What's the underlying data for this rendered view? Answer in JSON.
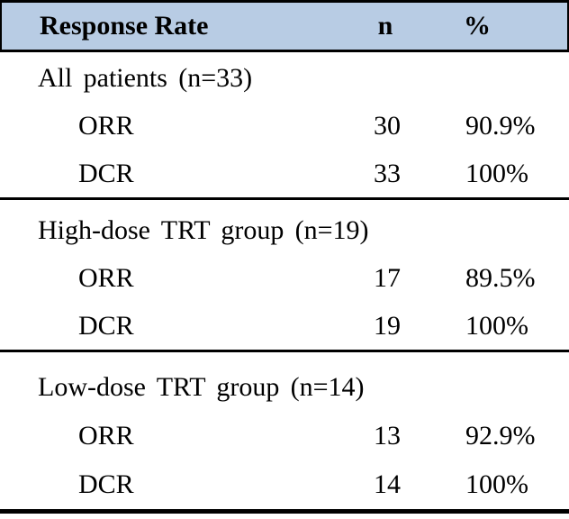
{
  "table": {
    "header": {
      "label": "Response Rate",
      "n": "n",
      "pct": "%"
    },
    "style": {
      "header_bg": "#b8cce4",
      "border_color": "#000000",
      "text_color": "#000000"
    },
    "sections": [
      {
        "group_label": "All patients (n=33)",
        "rows": [
          {
            "label": "ORR",
            "n": "30",
            "pct": "90.9%"
          },
          {
            "label": "DCR",
            "n": "33",
            "pct": "100%"
          }
        ]
      },
      {
        "group_label": "High-dose TRT group (n=19)",
        "rows": [
          {
            "label": "ORR",
            "n": "17",
            "pct": "89.5%"
          },
          {
            "label": "DCR",
            "n": "19",
            "pct": "100%"
          }
        ]
      },
      {
        "group_label": "Low-dose TRT group (n=14)",
        "rows": [
          {
            "label": "ORR",
            "n": "13",
            "pct": "92.9%"
          },
          {
            "label": "DCR",
            "n": "14",
            "pct": "100%"
          }
        ]
      }
    ]
  },
  "chart_data": {
    "type": "table",
    "title": "Response Rate",
    "columns": [
      "Response Rate",
      "n",
      "%"
    ],
    "rows": [
      [
        "All patients (n=33)",
        "",
        ""
      ],
      [
        "ORR",
        "30",
        "90.9%"
      ],
      [
        "DCR",
        "33",
        "100%"
      ],
      [
        "High-dose TRT group (n=19)",
        "",
        ""
      ],
      [
        "ORR",
        "17",
        "89.5%"
      ],
      [
        "DCR",
        "19",
        "100%"
      ],
      [
        "Low-dose TRT group (n=14)",
        "",
        ""
      ],
      [
        "ORR",
        "13",
        "92.9%"
      ],
      [
        "DCR",
        "14",
        "100%"
      ]
    ]
  }
}
